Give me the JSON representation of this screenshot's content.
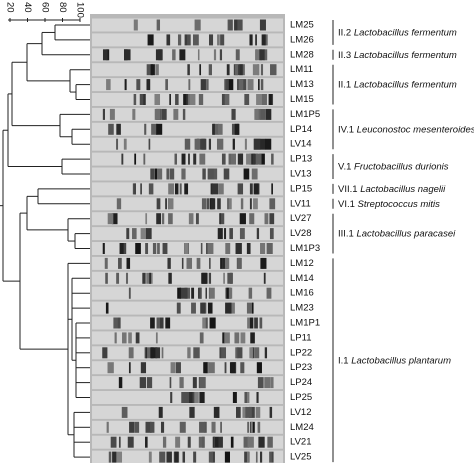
{
  "scale": {
    "ticks": [
      20,
      40,
      60,
      80,
      100
    ]
  },
  "lanes": [
    "LM25",
    "LM26",
    "LM28",
    "LM11",
    "LM13",
    "LM15",
    "LM1P5",
    "LP14",
    "LV14",
    "LP13",
    "LV13",
    "LP15",
    "LV11",
    "LV27",
    "LV28",
    "LM1P3",
    "LM12",
    "LM14",
    "LM16",
    "LM23",
    "LM1P1",
    "LP11",
    "LP22",
    "LP23",
    "LP24",
    "LP25",
    "LV12",
    "LM24",
    "LV21",
    "LV25"
  ],
  "groups": [
    {
      "code": "II.2",
      "species": "Lactobacillus fermentum"
    },
    {
      "code": "II.3",
      "species": "Lactobacillus fermentum"
    },
    {
      "code": "II.1",
      "species": "Lactobacillus fermentum"
    },
    {
      "code": "IV.1",
      "species": "Leuconostoc mesenteroides"
    },
    {
      "code": "V.1",
      "species": "Fructobacillus durionis"
    },
    {
      "code": "VII.1",
      "species": "Lactobacillus nagelii"
    },
    {
      "code": "VI.1",
      "species": "Streptococcus mitis"
    },
    {
      "code": "III.1",
      "species": "Lactobacillus paracasei"
    },
    {
      "code": "I.1",
      "species": "Lactobacillus plantarum"
    }
  ]
}
